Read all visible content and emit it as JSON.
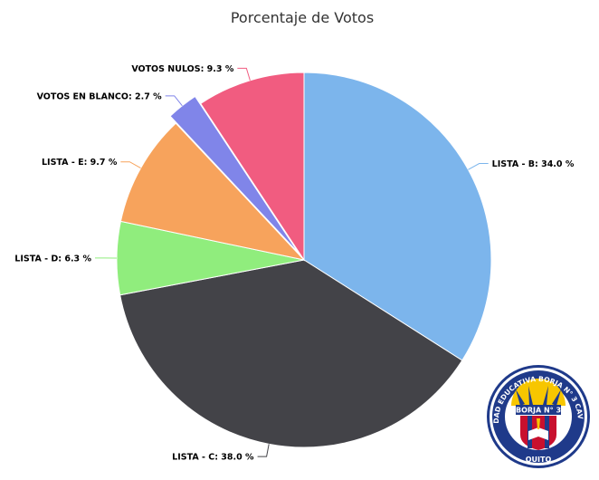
{
  "chart_data": {
    "type": "pie",
    "title": "Porcentaje de Votos",
    "slices": [
      {
        "label": "LISTA - B",
        "value": 34.0,
        "display": "LISTA - B: 34.0 %",
        "color": "#7cb5ec"
      },
      {
        "label": "LISTA - C",
        "value": 38.0,
        "display": "LISTA - C: 38.0 %",
        "color": "#434348"
      },
      {
        "label": "LISTA - D",
        "value": 6.3,
        "display": "LISTA - D: 6.3 %",
        "color": "#90ed7d"
      },
      {
        "label": "LISTA - E",
        "value": 9.7,
        "display": "LISTA - E: 9.7 %",
        "color": "#f7a35c"
      },
      {
        "label": "VOTOS EN BLANCO",
        "value": 2.7,
        "display": "VOTOS EN BLANCO: 2.7 %",
        "color": "#8085e9",
        "sliced": true
      },
      {
        "label": "VOTOS NULOS",
        "value": 9.3,
        "display": "VOTOS NULOS: 9.3 %",
        "color": "#f15c80"
      }
    ],
    "start_angle_deg": 0,
    "direction": "clockwise",
    "legend": "none"
  },
  "logo": {
    "name": "Unidad Educativa Borja N° 3 Cavanis",
    "ring_text": "UNIDAD EDUCATIVA BORJA N° 3 CAVANIS",
    "bottom_text": "QUITO",
    "banner_text": "BORJA N° 3",
    "colors": {
      "navy": "#1f3a8a",
      "red": "#c8102e",
      "yellow": "#f7c600"
    }
  }
}
